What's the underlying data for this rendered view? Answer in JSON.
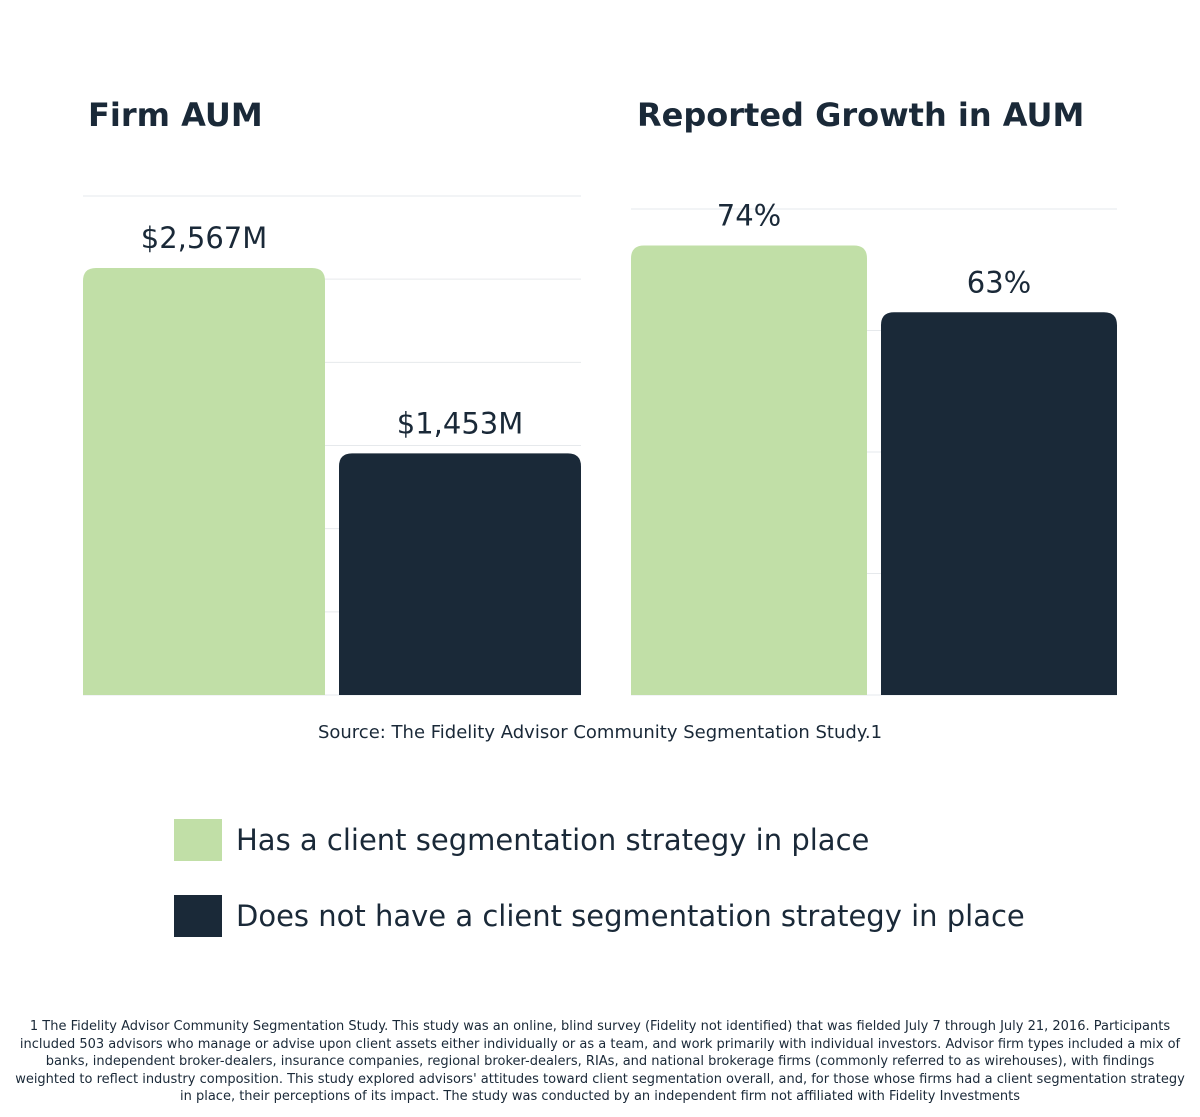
{
  "chart_data": [
    {
      "type": "bar",
      "title": "Firm AUM",
      "categories": [
        "Has a client segmentation strategy in place",
        "Does not have a client segmentation strategy in place"
      ],
      "values": [
        2567,
        1453
      ],
      "value_labels": [
        "$2,567M",
        "$1,453M"
      ],
      "unit": "$M",
      "ylim": [
        0,
        3000
      ],
      "grid": true
    },
    {
      "type": "bar",
      "title": "Reported Growth in AUM",
      "categories": [
        "Has a client segmentation strategy in place",
        "Does not have a client segmentation strategy in place"
      ],
      "values": [
        74,
        63
      ],
      "value_labels": [
        "74%",
        "63%"
      ],
      "unit": "%",
      "ylim": [
        0,
        80
      ],
      "grid": true
    }
  ],
  "source": "Source: The Fidelity Advisor Community Segmentation Study.1",
  "legend": [
    {
      "label": "Has a client segmentation strategy in place",
      "color": "#c1dfa7"
    },
    {
      "label": "Does not have a client segmentation strategy in place",
      "color": "#1a2938"
    }
  ],
  "footnote": "1 The Fidelity Advisor Community Segmentation Study. This study was an online, blind survey (Fidelity not identified) that was fielded July 7 through July 21, 2016. Participants included 503 advisors who manage or advise upon client assets either individually or as a team, and work primarily with individual investors. Advisor firm types included a mix of banks, independent broker-dealers, insurance companies, regional broker-dealers, RIAs, and national brokerage firms (commonly referred to as wirehouses), with findings weighted to reflect industry composition. This study explored advisors' attitudes toward client segmentation overall, and, for those whose firms had a client segmentation strategy in place, their perceptions of its impact. The study was conducted by an independent firm not affiliated with Fidelity Investments"
}
